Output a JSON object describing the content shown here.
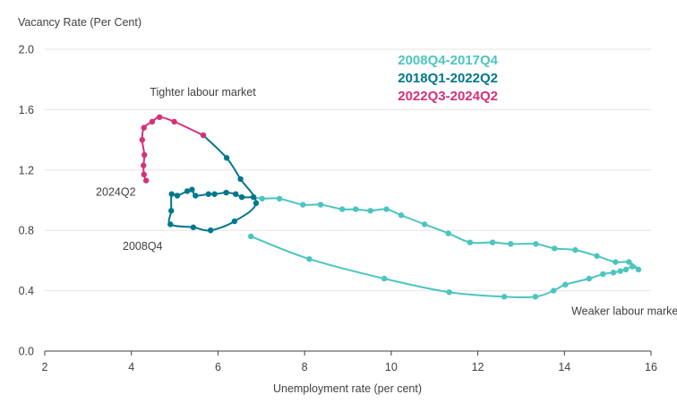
{
  "chart_data": {
    "type": "line",
    "title": "",
    "xlabel": "Unemployment  rate (per cent)",
    "ylabel": "Vacancy Rate (Per Cent)",
    "xlim": [
      2,
      16
    ],
    "ylim": [
      0,
      2.0
    ],
    "xticks": [
      2,
      4,
      6,
      8,
      10,
      12,
      14,
      16
    ],
    "yticks": [
      0.0,
      0.4,
      0.8,
      1.2,
      1.6,
      2.0
    ],
    "x_tick_labels": [
      "2",
      "4",
      "6",
      "8",
      "10",
      "12",
      "14",
      "16"
    ],
    "y_tick_labels": [
      "0.0",
      "0.4",
      "0.8",
      "1.2",
      "1.6",
      "2.0"
    ],
    "grid": "horizontal",
    "legend_position": "top-right",
    "series": [
      {
        "name": "2008Q4-2017Q4",
        "color": "#4cc5bf",
        "points": [
          [
            6.76,
            0.76
          ],
          [
            8.11,
            0.61
          ],
          [
            9.84,
            0.48
          ],
          [
            11.34,
            0.39
          ],
          [
            12.61,
            0.36
          ],
          [
            13.33,
            0.36
          ],
          [
            13.75,
            0.4
          ],
          [
            14.02,
            0.44
          ],
          [
            14.57,
            0.48
          ],
          [
            14.89,
            0.51
          ],
          [
            15.13,
            0.52
          ],
          [
            15.29,
            0.53
          ],
          [
            15.42,
            0.54
          ],
          [
            15.57,
            0.56
          ],
          [
            15.71,
            0.54
          ],
          [
            15.49,
            0.59
          ],
          [
            15.18,
            0.59
          ],
          [
            14.75,
            0.63
          ],
          [
            14.25,
            0.67
          ],
          [
            13.77,
            0.68
          ],
          [
            13.34,
            0.71
          ],
          [
            12.76,
            0.71
          ],
          [
            12.34,
            0.72
          ],
          [
            11.82,
            0.72
          ],
          [
            11.32,
            0.78
          ],
          [
            10.77,
            0.84
          ],
          [
            10.23,
            0.9
          ],
          [
            9.89,
            0.94
          ],
          [
            9.52,
            0.93
          ],
          [
            9.18,
            0.94
          ],
          [
            8.87,
            0.94
          ],
          [
            8.37,
            0.97
          ],
          [
            7.96,
            0.97
          ],
          [
            7.42,
            1.01
          ],
          [
            7.02,
            1.01
          ],
          [
            6.82,
            1.02
          ]
        ]
      },
      {
        "name": "2018Q1-2022Q2",
        "color": "#00778b",
        "points": [
          [
            6.82,
            1.02
          ],
          [
            6.55,
            1.02
          ],
          [
            6.41,
            1.04
          ],
          [
            6.19,
            1.05
          ],
          [
            5.92,
            1.04
          ],
          [
            5.78,
            1.04
          ],
          [
            5.48,
            1.03
          ],
          [
            5.4,
            1.07
          ],
          [
            5.29,
            1.06
          ],
          [
            5.06,
            1.03
          ],
          [
            4.93,
            1.04
          ],
          [
            4.92,
            0.93
          ],
          [
            4.9,
            0.84
          ],
          [
            5.43,
            0.82
          ],
          [
            5.83,
            0.8
          ],
          [
            6.38,
            0.86
          ],
          [
            6.88,
            0.98
          ],
          [
            6.52,
            1.14
          ],
          [
            6.2,
            1.28
          ],
          [
            5.66,
            1.43
          ]
        ]
      },
      {
        "name": "2022Q3-2024Q2",
        "color": "#d6307a",
        "points": [
          [
            5.66,
            1.43
          ],
          [
            4.99,
            1.52
          ],
          [
            4.65,
            1.55
          ],
          [
            4.48,
            1.52
          ],
          [
            4.29,
            1.48
          ],
          [
            4.25,
            1.4
          ],
          [
            4.3,
            1.3
          ],
          [
            4.28,
            1.23
          ],
          [
            4.29,
            1.17
          ],
          [
            4.34,
            1.13
          ]
        ]
      }
    ],
    "annotations": [
      {
        "text": "Tighter labour market",
        "x": 5.65,
        "y": 1.69,
        "anchor": "middle"
      },
      {
        "text": "2024Q2",
        "x": 3.18,
        "y": 1.03,
        "anchor": "start"
      },
      {
        "text": "2008Q4",
        "x": 3.8,
        "y": 0.67,
        "anchor": "start"
      },
      {
        "text": "Weaker labour market",
        "x": 16.7,
        "y": 0.24,
        "anchor": "end"
      }
    ]
  }
}
